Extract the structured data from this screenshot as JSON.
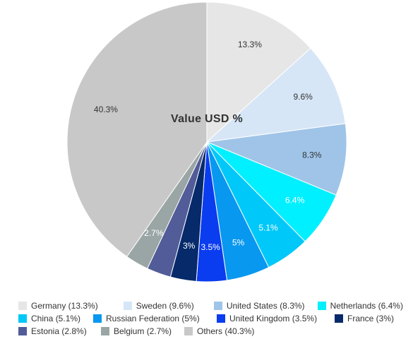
{
  "chart_data": {
    "type": "pie",
    "title": "Value USD %",
    "slices": [
      {
        "label": "Germany",
        "value": 13.3,
        "data_label": "13.3%",
        "legend": "Germany (13.3%)",
        "color": "#e6e6e6",
        "label_color": "#333333"
      },
      {
        "label": "Sweden",
        "value": 9.6,
        "data_label": "9.6%",
        "legend": "Sweden (9.6%)",
        "color": "#d6e6f7",
        "label_color": "#333333"
      },
      {
        "label": "United States",
        "value": 8.3,
        "data_label": "8.3%",
        "legend": "United States (8.3%)",
        "color": "#9fc4e8",
        "label_color": "#333333"
      },
      {
        "label": "Netherlands",
        "value": 6.4,
        "data_label": "6.4%",
        "legend": "Netherlands (6.4%)",
        "color": "#00f0ff",
        "label_color": "#ffffff"
      },
      {
        "label": "China",
        "value": 5.1,
        "data_label": "5.1%",
        "legend": "China (5.1%)",
        "color": "#00c8f8",
        "label_color": "#ffffff"
      },
      {
        "label": "Russian Federation",
        "value": 5,
        "data_label": "5%",
        "legend": "Russian Federation (5%)",
        "color": "#0898f0",
        "label_color": "#ffffff"
      },
      {
        "label": "United Kingdom",
        "value": 3.5,
        "data_label": "3.5%",
        "legend": "United Kingdom (3.5%)",
        "color": "#0a3cf0",
        "label_color": "#ffffff"
      },
      {
        "label": "France",
        "value": 3,
        "data_label": "3%",
        "legend": "France (3%)",
        "color": "#062a6a",
        "label_color": "#ffffff"
      },
      {
        "label": "Estonia",
        "value": 2.8,
        "data_label": "",
        "legend": "Estonia (2.8%)",
        "color": "#525c98",
        "label_color": "#ffffff"
      },
      {
        "label": "Belgium",
        "value": 2.7,
        "data_label": "2.7%",
        "legend": "Belgium (2.7%)",
        "color": "#9aa6a6",
        "label_color": "#ffffff"
      },
      {
        "label": "Others",
        "value": 40.3,
        "data_label": "40.3%",
        "legend": "Others (40.3%)",
        "color": "#c8c8c8",
        "label_color": "#333333"
      }
    ],
    "legend_position": "bottom"
  }
}
